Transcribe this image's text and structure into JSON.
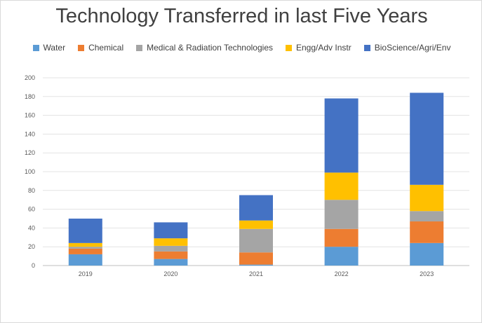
{
  "chart_data": {
    "type": "bar",
    "stacked": true,
    "title": "Technology Transferred in last Five Years",
    "xlabel": "",
    "ylabel": "",
    "categories": [
      "2019",
      "2020",
      "2021",
      "2022",
      "2023"
    ],
    "ylim": [
      0,
      200
    ],
    "yticks": [
      0,
      20,
      40,
      60,
      80,
      100,
      120,
      140,
      160,
      180,
      200
    ],
    "grid": true,
    "legend_position": "top",
    "series": [
      {
        "name": "Water",
        "color": "#5b9bd5",
        "values": [
          12,
          7,
          1,
          20,
          24
        ]
      },
      {
        "name": "Chemical",
        "color": "#ed7d31",
        "values": [
          6,
          8,
          13,
          19,
          23
        ]
      },
      {
        "name": "Medical & Radiation Technologies",
        "color": "#a5a5a5",
        "values": [
          2,
          6,
          25,
          31,
          11
        ]
      },
      {
        "name": "Engg/Adv Instr",
        "color": "#ffc000",
        "values": [
          4,
          8,
          9,
          29,
          28
        ]
      },
      {
        "name": "BioScience/Agri/Env",
        "color": "#4472c4",
        "values": [
          26,
          17,
          27,
          79,
          98
        ]
      }
    ]
  }
}
